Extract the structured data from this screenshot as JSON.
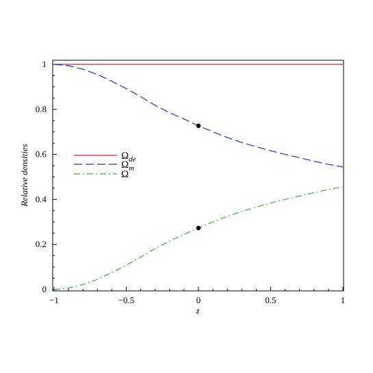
{
  "chart_data": {
    "type": "line",
    "xlabel": "z",
    "ylabel": "Relative densities",
    "xlim": [
      -1,
      1
    ],
    "ylim": [
      0,
      1
    ],
    "xticks": [
      -1,
      -0.5,
      0,
      0.5,
      1
    ],
    "xtick_labels": [
      "-1",
      "-0.5",
      "0",
      "0.5",
      "1"
    ],
    "yticks": [
      0,
      0.2,
      0.4,
      0.6,
      0.8,
      1
    ],
    "ytick_labels": [
      "0",
      "0.2",
      "0.4",
      "0.6",
      "0.8",
      "1"
    ],
    "grid": false,
    "legend_position": "left-middle",
    "x": [
      -1.0,
      -0.9,
      -0.8,
      -0.7,
      -0.6,
      -0.5,
      -0.4,
      -0.3,
      -0.2,
      -0.1,
      0.0,
      0.1,
      0.2,
      0.3,
      0.4,
      0.5,
      0.6,
      0.7,
      0.8,
      0.9,
      1.0
    ],
    "series": [
      {
        "name": "Ω",
        "name_sub": "de",
        "color": "#d62020",
        "dash": "solid",
        "values": [
          1,
          1,
          1,
          1,
          1,
          1,
          1,
          1,
          1,
          1,
          1,
          1,
          1,
          1,
          1,
          1,
          1,
          1,
          1,
          1,
          1
        ]
      },
      {
        "name": "Ω",
        "name_sub": "m",
        "color": "#1a2fd6",
        "dash": "dashed",
        "values": [
          1.0,
          0.994,
          0.978,
          0.955,
          0.925,
          0.892,
          0.856,
          0.818,
          0.785,
          0.757,
          0.727,
          0.7,
          0.675,
          0.653,
          0.634,
          0.616,
          0.6,
          0.585,
          0.57,
          0.556,
          0.544
        ]
      },
      {
        "name": "Ω",
        "name_sub": "",
        "color": "#33b533",
        "dash": "dashdot",
        "values": [
          0.0,
          0.006,
          0.022,
          0.045,
          0.075,
          0.108,
          0.144,
          0.182,
          0.215,
          0.245,
          0.273,
          0.3,
          0.325,
          0.347,
          0.366,
          0.384,
          0.4,
          0.415,
          0.43,
          0.444,
          0.456
        ]
      }
    ],
    "markers": [
      {
        "x": 0.0,
        "y": 0.727
      },
      {
        "x": 0.0,
        "y": 0.273
      }
    ]
  }
}
